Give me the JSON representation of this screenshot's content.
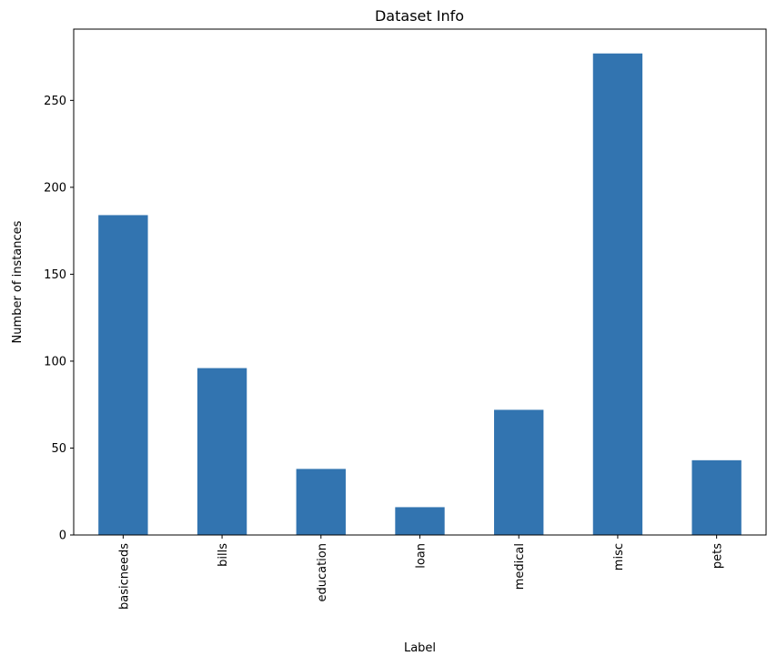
{
  "chart_data": {
    "type": "bar",
    "title": "Dataset Info",
    "xlabel": "Label",
    "ylabel": "Number of instances",
    "categories": [
      "basicneeds",
      "bills",
      "education",
      "loan",
      "medical",
      "misc",
      "pets"
    ],
    "values": [
      184,
      96,
      38,
      16,
      72,
      277,
      43
    ],
    "ylim": [
      0,
      291
    ],
    "yticks": [
      0,
      50,
      100,
      150,
      200,
      250
    ],
    "bar_color": "#3274b0",
    "grid": false,
    "legend": "none"
  }
}
